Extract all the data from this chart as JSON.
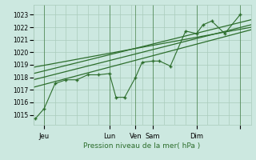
{
  "background_color": "#cce8e0",
  "grid_color": "#aaccbb",
  "line_color": "#2d6e2d",
  "title": "Pression niveau de la mer( hPa )",
  "ylabel_ticks": [
    1015,
    1016,
    1017,
    1018,
    1019,
    1020,
    1021,
    1022,
    1023
  ],
  "ylim": [
    1014.2,
    1023.8
  ],
  "xlim": [
    0.0,
    10.0
  ],
  "xtick_positions": [
    0.5,
    3.5,
    4.7,
    5.5,
    7.5,
    9.5
  ],
  "xtick_labels": [
    "Jeu",
    "Lun",
    "Ven",
    "Sam",
    "Dim",
    ""
  ],
  "vline_positions": [
    0.5,
    3.5,
    4.7,
    5.5,
    7.5,
    9.5
  ],
  "zigzag_x": [
    0.1,
    0.5,
    1.0,
    1.5,
    2.0,
    2.5,
    3.0,
    3.5,
    3.8,
    4.2,
    4.7,
    5.0,
    5.5,
    5.8,
    6.3,
    7.0,
    7.5,
    7.8,
    8.2,
    8.8,
    9.5
  ],
  "zigzag_y": [
    1014.7,
    1015.5,
    1017.5,
    1017.8,
    1017.8,
    1018.2,
    1018.2,
    1018.3,
    1016.4,
    1016.4,
    1018.0,
    1019.2,
    1019.3,
    1019.3,
    1018.9,
    1021.7,
    1021.5,
    1022.2,
    1022.5,
    1021.5,
    1023.0
  ],
  "trend1_x": [
    0.0,
    10.0
  ],
  "trend1_y": [
    1017.2,
    1021.8
  ],
  "trend2_x": [
    0.0,
    10.0
  ],
  "trend2_y": [
    1017.8,
    1022.2
  ],
  "trend3_x": [
    0.0,
    10.0
  ],
  "trend3_y": [
    1018.3,
    1022.6
  ],
  "trend4_x": [
    0.0,
    10.0
  ],
  "trend4_y": [
    1018.8,
    1022.0
  ]
}
